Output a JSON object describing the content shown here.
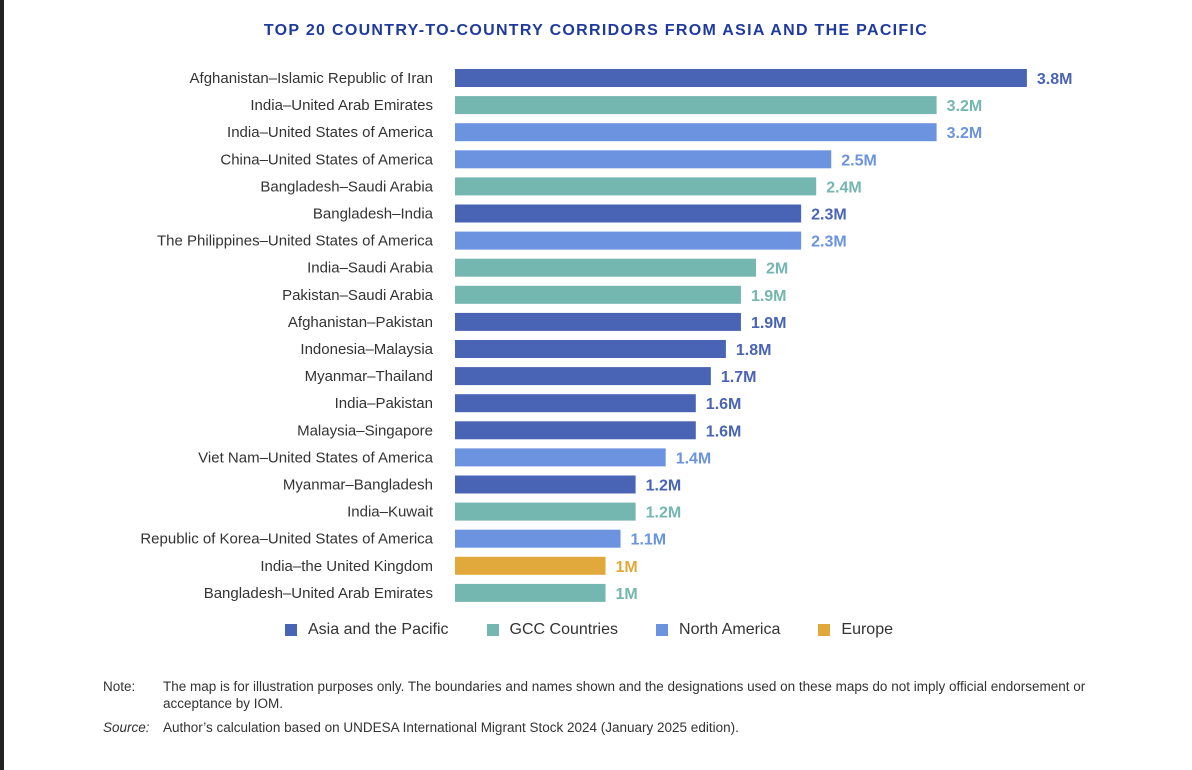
{
  "chart_data": {
    "type": "bar",
    "orientation": "horizontal",
    "title": "TOP 20 COUNTRY-TO-COUNTRY CORRIDORS FROM ASIA AND THE PACIFIC",
    "unit": "M",
    "legend_position": "bottom",
    "grid": false,
    "categories": [
      "Afghanistan–Islamic Republic of Iran",
      "India–United Arab Emirates",
      "India–United States of America",
      "China–United States of America",
      "Bangladesh–Saudi Arabia",
      "Bangladesh–India",
      "The Philippines–United States of America",
      "India–Saudi Arabia",
      "Pakistan–Saudi Arabia",
      "Afghanistan–Pakistan",
      "Indonesia–Malaysia",
      "Myanmar–Thailand",
      "India–Pakistan",
      "Malaysia–Singapore",
      "Viet Nam–United States of America",
      "Myanmar–Bangladesh",
      "India–Kuwait",
      "Republic of Korea–United States of America",
      "India–the United Kingdom",
      "Bangladesh–United Arab Emirates"
    ],
    "values": [
      3.8,
      3.2,
      3.2,
      2.5,
      2.4,
      2.3,
      2.3,
      2,
      1.9,
      1.9,
      1.8,
      1.7,
      1.6,
      1.6,
      1.4,
      1.2,
      1.2,
      1.1,
      1,
      1
    ],
    "value_labels": [
      "3.8M",
      "3.2M",
      "3.2M",
      "2.5M",
      "2.4M",
      "2.3M",
      "2.3M",
      "2M",
      "1.9M",
      "1.9M",
      "1.8M",
      "1.7M",
      "1.6M",
      "1.6M",
      "1.4M",
      "1.2M",
      "1.2M",
      "1.1M",
      "1M",
      "1M"
    ],
    "groups": [
      0,
      1,
      2,
      2,
      1,
      0,
      2,
      1,
      1,
      0,
      0,
      0,
      0,
      0,
      2,
      0,
      1,
      2,
      3,
      1
    ],
    "series": [
      {
        "name": "Asia and the Pacific",
        "color": "#4a64b5"
      },
      {
        "name": "GCC Countries",
        "color": "#74b6b0"
      },
      {
        "name": "North America",
        "color": "#6b93e0"
      },
      {
        "name": "Europe",
        "color": "#e1a93c"
      }
    ]
  },
  "notes": {
    "note_label": "Note:",
    "note_text": "The map is for illustration purposes only. The boundaries and names shown and the designations used on these maps do not imply official endorsement or acceptance by IOM.",
    "source_label": "Source:",
    "source_text": "Author’s calculation based on UNDESA International Migrant Stock 2024 (January 2025 edition)."
  }
}
